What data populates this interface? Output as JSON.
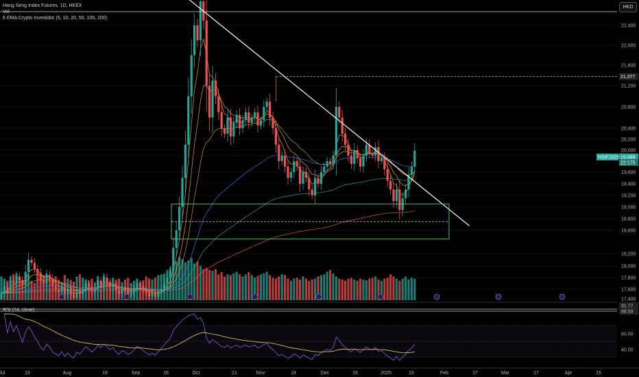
{
  "legend": {
    "title": "Hang Seng Index Futures, 1D, HKEX",
    "volume": "Vol",
    "ema": "6 EMA Crypto Investidor (5, 10, 20, 50, 100, 200)",
    "rsi": "RSI (14, close)"
  },
  "currency": "HKD",
  "colors": {
    "up": "#26a69a",
    "down": "#ef5350",
    "ema_short": "#f0a050",
    "ema_mid": "#c8a040",
    "ema50": "#4a6fe0",
    "ema100": "#26a69a",
    "ema200": "#ef5350",
    "rsi": "#7e57c2",
    "rsi_ma": "#d4c34a",
    "box": "#5fd35f",
    "trendline": "#ffffff"
  },
  "chart_data": {
    "type": "candlestick",
    "instrument": "Hang Seng Index Futures",
    "price_axis": {
      "ticks": [
        "22,400",
        "22,000",
        "21,600",
        "21,200",
        "20,800",
        "20,400",
        "20,200",
        "20,000",
        "19,600",
        "19,400",
        "19,200",
        "19,000",
        "18,800",
        "18,600",
        "18,200",
        "18,000",
        "17,800",
        "17,600",
        "17,400"
      ],
      "labels": [
        {
          "text": "21,377",
          "value": 21377
        },
        {
          "text": "HSIF2025",
          "value": 19900
        },
        {
          "text": "19,988",
          "value": 19988
        },
        {
          "text": "22:175",
          "value": 19900
        }
      ]
    },
    "x_axis": {
      "ticks": [
        "Jul",
        "15",
        "Aug",
        "19",
        "Sep",
        "16",
        "Oct",
        "21",
        "Nov",
        "18",
        "Dec",
        "16",
        "2025",
        "15",
        "Feb",
        "17",
        "Mar",
        "17",
        "Apr",
        "15"
      ]
    },
    "candles": {
      "start": 17400,
      "closes": [
        17520,
        17650,
        17600,
        17750,
        17700,
        17820,
        17760,
        17680,
        17900,
        18100,
        18050,
        17950,
        17880,
        17760,
        17700,
        17850,
        17780,
        17650,
        17600,
        17550,
        17640,
        17500,
        17580,
        17480,
        17420,
        17560,
        17500,
        17600,
        17700,
        17640,
        17550,
        17620,
        17750,
        17680,
        17800,
        17720,
        17650,
        17700,
        17580,
        17500,
        17600,
        17560,
        17480,
        17520,
        17600,
        17700,
        17650,
        17580,
        17520,
        17460,
        17500,
        17440,
        17520,
        17600,
        17700,
        17800,
        17920,
        18300,
        18600,
        19000,
        19500,
        20100,
        21000,
        21800,
        22400,
        22100,
        22900,
        22500,
        21200,
        20600,
        21300,
        21000,
        20700,
        20400,
        20300,
        20600,
        20250,
        20500,
        20650,
        20400,
        20550,
        20700,
        20500,
        20600,
        20700,
        20450,
        20550,
        20800,
        20900,
        20600,
        20400,
        20100,
        19800,
        19900,
        19700,
        19500,
        19600,
        19800,
        19700,
        19400,
        19600,
        19500,
        19300,
        19200,
        19500,
        19400,
        19600,
        19700,
        19800,
        19750,
        19900,
        20800,
        20600,
        20300,
        20100,
        19900,
        19750,
        20000,
        19850,
        19700,
        19900,
        20100,
        19950,
        19900,
        20050,
        19800,
        19850,
        19650,
        19450,
        19300,
        19100,
        19300,
        18950,
        19150,
        19300,
        19550,
        19700,
        19988
      ],
      "volume": [
        0.55,
        0.5,
        0.45,
        0.55,
        0.6,
        0.62,
        0.5,
        0.45,
        0.52,
        0.6,
        0.45,
        0.4,
        0.65,
        0.5,
        0.58,
        0.62,
        0.5,
        0.45,
        0.55,
        0.48,
        0.42,
        0.58,
        0.5,
        0.47,
        0.43,
        0.55,
        0.6,
        0.52,
        0.48,
        0.45,
        0.5,
        0.42,
        0.55,
        0.45,
        0.58,
        0.5,
        0.44,
        0.52,
        0.46,
        0.5,
        0.42,
        0.48,
        0.52,
        0.4,
        0.45,
        0.5,
        0.42,
        0.46,
        0.55,
        0.5,
        0.48,
        0.52,
        0.58,
        0.6,
        0.62,
        0.7,
        0.75,
        0.82,
        0.9,
        1.0,
        0.95,
        0.88,
        0.92,
        0.98,
        0.85,
        0.9,
        0.8,
        0.72,
        0.75,
        0.7,
        0.68,
        0.72,
        0.6,
        0.65,
        0.55,
        0.6,
        0.58,
        0.62,
        0.66,
        0.6,
        0.55,
        0.6,
        0.65,
        0.58,
        0.52,
        0.56,
        0.6,
        0.62,
        0.66,
        0.58,
        0.52,
        0.5,
        0.55,
        0.6,
        0.58,
        0.5,
        0.45,
        0.5,
        0.52,
        0.48,
        0.55,
        0.5,
        0.45,
        0.48,
        0.5,
        0.55,
        0.58,
        0.6,
        0.66,
        0.7,
        0.62,
        0.55,
        0.5,
        0.48,
        0.45,
        0.5,
        0.52,
        0.48,
        0.45,
        0.5,
        0.48,
        0.46,
        0.5,
        0.52,
        0.55,
        0.48,
        0.45,
        0.5,
        0.52,
        0.6,
        0.55,
        0.5,
        0.45,
        0.5,
        0.55,
        0.48,
        0.52,
        0.5
      ]
    },
    "trendline": {
      "from": [
        62,
        22950
      ],
      "to": [
        146,
        18750
      ]
    },
    "resistance_level": 21377,
    "support_box": {
      "x_from": 56,
      "x_to": 146,
      "y_low": 18450,
      "y_high": 19050,
      "mid": 18750
    },
    "rsi_axis": {
      "ticks": [
        "91.77",
        "88.99",
        "60.00",
        "40.00"
      ]
    }
  }
}
